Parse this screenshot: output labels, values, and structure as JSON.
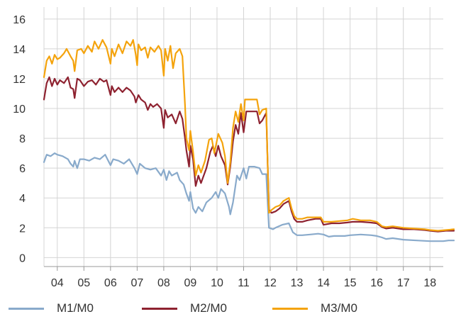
{
  "chart_data": {
    "type": "line",
    "title": "",
    "xlabel": "",
    "ylabel": "",
    "ylim": [
      -0.6,
      16.8
    ],
    "yticks": [
      0,
      2,
      4,
      6,
      8,
      10,
      12,
      14,
      16
    ],
    "xlim": [
      2003.5,
      2018.5
    ],
    "xtick_labels": [
      "04",
      "05",
      "06",
      "07",
      "08",
      "09",
      "10",
      "11",
      "12",
      "13",
      "14",
      "15",
      "16",
      "17",
      "18"
    ],
    "grid": true,
    "legend_position": "bottom",
    "colors": {
      "M1/M0": "#89aacb",
      "M2/M0": "#8e2230",
      "M3/M0": "#f4a30c"
    },
    "series": [
      {
        "name": "M1/M0",
        "points": [
          [
            2003.5,
            6.4
          ],
          [
            2003.6,
            6.9
          ],
          [
            2003.75,
            6.8
          ],
          [
            2003.9,
            7.0
          ],
          [
            2004.0,
            6.9
          ],
          [
            2004.2,
            6.8
          ],
          [
            2004.4,
            6.6
          ],
          [
            2004.5,
            6.3
          ],
          [
            2004.6,
            6.1
          ],
          [
            2004.65,
            6.5
          ],
          [
            2004.75,
            6.0
          ],
          [
            2004.85,
            6.6
          ],
          [
            2005.0,
            6.6
          ],
          [
            2005.2,
            6.5
          ],
          [
            2005.4,
            6.7
          ],
          [
            2005.6,
            6.6
          ],
          [
            2005.8,
            6.9
          ],
          [
            2006.0,
            6.2
          ],
          [
            2006.1,
            6.6
          ],
          [
            2006.3,
            6.5
          ],
          [
            2006.5,
            6.3
          ],
          [
            2006.7,
            6.6
          ],
          [
            2006.9,
            6.0
          ],
          [
            2007.0,
            5.6
          ],
          [
            2007.1,
            6.3
          ],
          [
            2007.3,
            6.0
          ],
          [
            2007.5,
            5.9
          ],
          [
            2007.7,
            6.0
          ],
          [
            2007.9,
            5.5
          ],
          [
            2008.0,
            5.9
          ],
          [
            2008.1,
            5.2
          ],
          [
            2008.2,
            5.8
          ],
          [
            2008.3,
            5.5
          ],
          [
            2008.5,
            5.7
          ],
          [
            2008.6,
            5.2
          ],
          [
            2008.75,
            4.9
          ],
          [
            2008.85,
            4.3
          ],
          [
            2008.95,
            3.8
          ],
          [
            2009.0,
            4.4
          ],
          [
            2009.1,
            3.3
          ],
          [
            2009.2,
            3.0
          ],
          [
            2009.3,
            3.4
          ],
          [
            2009.45,
            3.1
          ],
          [
            2009.6,
            3.7
          ],
          [
            2009.8,
            4.0
          ],
          [
            2009.95,
            4.4
          ],
          [
            2010.05,
            4.0
          ],
          [
            2010.15,
            4.6
          ],
          [
            2010.3,
            4.3
          ],
          [
            2010.45,
            3.4
          ],
          [
            2010.5,
            2.9
          ],
          [
            2010.6,
            3.7
          ],
          [
            2010.75,
            5.5
          ],
          [
            2010.85,
            5.2
          ],
          [
            2011.0,
            6.0
          ],
          [
            2011.1,
            5.3
          ],
          [
            2011.2,
            6.1
          ],
          [
            2011.4,
            6.1
          ],
          [
            2011.6,
            6.0
          ],
          [
            2011.7,
            5.6
          ],
          [
            2011.85,
            5.6
          ],
          [
            2011.95,
            2.0
          ],
          [
            2012.1,
            1.9
          ],
          [
            2012.2,
            2.0
          ],
          [
            2012.45,
            2.2
          ],
          [
            2012.7,
            2.3
          ],
          [
            2012.85,
            1.7
          ],
          [
            2013.0,
            1.5
          ],
          [
            2013.2,
            1.5
          ],
          [
            2013.5,
            1.55
          ],
          [
            2013.8,
            1.6
          ],
          [
            2014.0,
            1.55
          ],
          [
            2014.2,
            1.4
          ],
          [
            2014.4,
            1.45
          ],
          [
            2014.8,
            1.45
          ],
          [
            2015.0,
            1.5
          ],
          [
            2015.4,
            1.55
          ],
          [
            2015.8,
            1.5
          ],
          [
            2016.0,
            1.45
          ],
          [
            2016.2,
            1.35
          ],
          [
            2016.35,
            1.25
          ],
          [
            2016.6,
            1.3
          ],
          [
            2017.0,
            1.2
          ],
          [
            2017.5,
            1.15
          ],
          [
            2018.0,
            1.1
          ],
          [
            2018.5,
            1.1
          ],
          [
            2018.7,
            1.15
          ],
          [
            2018.9,
            1.15
          ]
        ]
      },
      {
        "name": "M2/M0",
        "points": [
          [
            2003.5,
            10.6
          ],
          [
            2003.6,
            11.7
          ],
          [
            2003.7,
            12.1
          ],
          [
            2003.8,
            11.5
          ],
          [
            2003.9,
            12.0
          ],
          [
            2004.0,
            11.6
          ],
          [
            2004.1,
            11.9
          ],
          [
            2004.25,
            11.7
          ],
          [
            2004.4,
            12.1
          ],
          [
            2004.5,
            11.4
          ],
          [
            2004.6,
            11.3
          ],
          [
            2004.65,
            10.7
          ],
          [
            2004.75,
            12.0
          ],
          [
            2004.85,
            11.9
          ],
          [
            2005.0,
            11.5
          ],
          [
            2005.15,
            11.8
          ],
          [
            2005.3,
            11.9
          ],
          [
            2005.45,
            11.6
          ],
          [
            2005.6,
            12.0
          ],
          [
            2005.75,
            11.8
          ],
          [
            2005.85,
            11.9
          ],
          [
            2006.0,
            10.9
          ],
          [
            2006.05,
            11.5
          ],
          [
            2006.15,
            11.1
          ],
          [
            2006.3,
            11.4
          ],
          [
            2006.45,
            11.1
          ],
          [
            2006.6,
            11.4
          ],
          [
            2006.75,
            11.2
          ],
          [
            2006.9,
            10.8
          ],
          [
            2006.95,
            10.4
          ],
          [
            2007.05,
            10.9
          ],
          [
            2007.15,
            10.6
          ],
          [
            2007.3,
            10.4
          ],
          [
            2007.4,
            9.9
          ],
          [
            2007.5,
            10.3
          ],
          [
            2007.6,
            10.1
          ],
          [
            2007.75,
            10.3
          ],
          [
            2007.9,
            10.0
          ],
          [
            2008.0,
            8.7
          ],
          [
            2008.05,
            9.9
          ],
          [
            2008.15,
            9.4
          ],
          [
            2008.3,
            9.6
          ],
          [
            2008.45,
            9.0
          ],
          [
            2008.6,
            9.8
          ],
          [
            2008.7,
            9.3
          ],
          [
            2008.8,
            8.0
          ],
          [
            2008.85,
            7.2
          ],
          [
            2008.95,
            6.1
          ],
          [
            2009.0,
            7.5
          ],
          [
            2009.1,
            6.6
          ],
          [
            2009.2,
            4.8
          ],
          [
            2009.3,
            5.5
          ],
          [
            2009.4,
            5.0
          ],
          [
            2009.6,
            6.0
          ],
          [
            2009.75,
            7.1
          ],
          [
            2009.85,
            7.5
          ],
          [
            2009.95,
            6.8
          ],
          [
            2010.05,
            7.5
          ],
          [
            2010.15,
            6.8
          ],
          [
            2010.3,
            6.2
          ],
          [
            2010.4,
            4.9
          ],
          [
            2010.5,
            6.1
          ],
          [
            2010.6,
            7.8
          ],
          [
            2010.7,
            8.9
          ],
          [
            2010.8,
            8.3
          ],
          [
            2010.9,
            9.7
          ],
          [
            2011.0,
            8.4
          ],
          [
            2011.1,
            9.8
          ],
          [
            2011.3,
            9.8
          ],
          [
            2011.5,
            9.8
          ],
          [
            2011.6,
            9.0
          ],
          [
            2011.7,
            9.2
          ],
          [
            2011.85,
            9.7
          ],
          [
            2011.95,
            3.2
          ],
          [
            2012.05,
            3.0
          ],
          [
            2012.2,
            3.1
          ],
          [
            2012.35,
            3.3
          ],
          [
            2012.5,
            3.6
          ],
          [
            2012.7,
            3.8
          ],
          [
            2012.8,
            3.1
          ],
          [
            2012.9,
            2.6
          ],
          [
            2013.0,
            2.4
          ],
          [
            2013.2,
            2.4
          ],
          [
            2013.4,
            2.5
          ],
          [
            2013.7,
            2.6
          ],
          [
            2013.9,
            2.6
          ],
          [
            2014.0,
            2.2
          ],
          [
            2014.3,
            2.3
          ],
          [
            2014.6,
            2.3
          ],
          [
            2014.9,
            2.35
          ],
          [
            2015.1,
            2.4
          ],
          [
            2015.4,
            2.4
          ],
          [
            2015.75,
            2.35
          ],
          [
            2016.0,
            2.3
          ],
          [
            2016.2,
            2.05
          ],
          [
            2016.35,
            1.95
          ],
          [
            2016.6,
            2.0
          ],
          [
            2017.0,
            1.9
          ],
          [
            2017.4,
            1.9
          ],
          [
            2017.8,
            1.85
          ],
          [
            2018.0,
            1.8
          ],
          [
            2018.3,
            1.75
          ],
          [
            2018.6,
            1.8
          ],
          [
            2018.9,
            1.8
          ]
        ]
      },
      {
        "name": "M3/M0",
        "points": [
          [
            2003.5,
            12.1
          ],
          [
            2003.6,
            13.2
          ],
          [
            2003.7,
            13.5
          ],
          [
            2003.8,
            13.0
          ],
          [
            2003.9,
            13.6
          ],
          [
            2004.0,
            13.3
          ],
          [
            2004.1,
            13.4
          ],
          [
            2004.25,
            13.7
          ],
          [
            2004.35,
            14.0
          ],
          [
            2004.5,
            13.5
          ],
          [
            2004.6,
            13.2
          ],
          [
            2004.65,
            12.5
          ],
          [
            2004.75,
            13.9
          ],
          [
            2004.9,
            14.0
          ],
          [
            2005.0,
            13.7
          ],
          [
            2005.15,
            14.2
          ],
          [
            2005.3,
            13.8
          ],
          [
            2005.4,
            14.5
          ],
          [
            2005.55,
            14.0
          ],
          [
            2005.7,
            14.6
          ],
          [
            2005.85,
            14.1
          ],
          [
            2006.0,
            13.0
          ],
          [
            2006.05,
            14.0
          ],
          [
            2006.15,
            13.5
          ],
          [
            2006.3,
            14.3
          ],
          [
            2006.45,
            13.7
          ],
          [
            2006.6,
            14.5
          ],
          [
            2006.75,
            14.2
          ],
          [
            2006.85,
            14.6
          ],
          [
            2006.95,
            13.6
          ],
          [
            2007.0,
            12.9
          ],
          [
            2007.05,
            14.3
          ],
          [
            2007.15,
            13.9
          ],
          [
            2007.3,
            14.1
          ],
          [
            2007.4,
            13.4
          ],
          [
            2007.5,
            14.1
          ],
          [
            2007.65,
            13.8
          ],
          [
            2007.8,
            14.2
          ],
          [
            2007.9,
            13.9
          ],
          [
            2008.0,
            12.2
          ],
          [
            2008.05,
            14.0
          ],
          [
            2008.15,
            13.2
          ],
          [
            2008.25,
            14.2
          ],
          [
            2008.35,
            12.7
          ],
          [
            2008.45,
            13.7
          ],
          [
            2008.6,
            14.0
          ],
          [
            2008.7,
            13.5
          ],
          [
            2008.8,
            10.2
          ],
          [
            2008.85,
            8.0
          ],
          [
            2008.95,
            7.2
          ],
          [
            2009.0,
            8.5
          ],
          [
            2009.1,
            7.1
          ],
          [
            2009.2,
            5.5
          ],
          [
            2009.3,
            6.2
          ],
          [
            2009.4,
            5.7
          ],
          [
            2009.55,
            6.5
          ],
          [
            2009.7,
            7.9
          ],
          [
            2009.8,
            8.0
          ],
          [
            2009.9,
            7.0
          ],
          [
            2010.05,
            8.3
          ],
          [
            2010.2,
            7.7
          ],
          [
            2010.3,
            6.8
          ],
          [
            2010.4,
            5.0
          ],
          [
            2010.5,
            6.4
          ],
          [
            2010.6,
            8.7
          ],
          [
            2010.7,
            9.8
          ],
          [
            2010.8,
            9.1
          ],
          [
            2010.9,
            10.3
          ],
          [
            2011.0,
            9.2
          ],
          [
            2011.05,
            10.6
          ],
          [
            2011.3,
            10.6
          ],
          [
            2011.5,
            10.6
          ],
          [
            2011.6,
            9.6
          ],
          [
            2011.7,
            9.9
          ],
          [
            2011.85,
            10.0
          ],
          [
            2011.95,
            3.0
          ],
          [
            2012.05,
            3.2
          ],
          [
            2012.2,
            3.4
          ],
          [
            2012.35,
            3.5
          ],
          [
            2012.5,
            3.8
          ],
          [
            2012.7,
            4.0
          ],
          [
            2012.8,
            3.3
          ],
          [
            2012.9,
            2.8
          ],
          [
            2013.0,
            2.6
          ],
          [
            2013.2,
            2.6
          ],
          [
            2013.4,
            2.7
          ],
          [
            2013.6,
            2.7
          ],
          [
            2013.9,
            2.7
          ],
          [
            2014.0,
            2.4
          ],
          [
            2014.3,
            2.4
          ],
          [
            2014.6,
            2.45
          ],
          [
            2014.9,
            2.5
          ],
          [
            2015.1,
            2.6
          ],
          [
            2015.4,
            2.5
          ],
          [
            2015.75,
            2.5
          ],
          [
            2016.0,
            2.4
          ],
          [
            2016.2,
            2.1
          ],
          [
            2016.35,
            2.05
          ],
          [
            2016.6,
            2.1
          ],
          [
            2017.0,
            2.0
          ],
          [
            2017.4,
            1.95
          ],
          [
            2017.8,
            1.9
          ],
          [
            2018.0,
            1.85
          ],
          [
            2018.3,
            1.8
          ],
          [
            2018.6,
            1.85
          ],
          [
            2018.9,
            1.9
          ]
        ]
      }
    ]
  }
}
